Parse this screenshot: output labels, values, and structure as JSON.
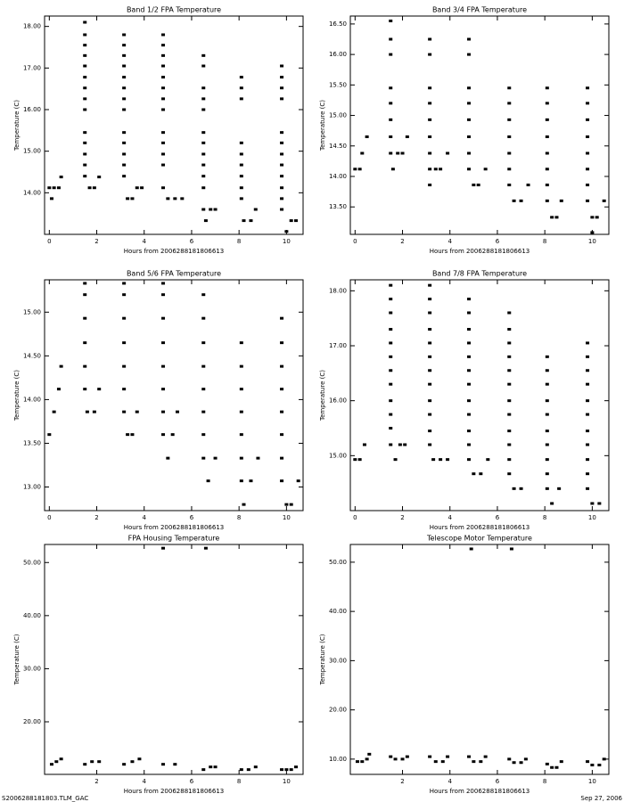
{
  "chart_data": [
    {
      "type": "scatter",
      "title": "Band 1/2 FPA Temperature",
      "x_label": "Hours from 2006288181806613",
      "y_label": "Temperature (C)",
      "color": "#000000",
      "xlim": [
        -0.2,
        10.7
      ],
      "ylim": [
        13.0,
        18.25
      ],
      "xticks": [
        0,
        2,
        4,
        6,
        8,
        10
      ],
      "yticks": [
        {
          "value": 14,
          "label": "14.00"
        },
        {
          "value": 15,
          "label": "15.00"
        },
        {
          "value": 16,
          "label": "16.00"
        },
        {
          "value": 17,
          "label": "17.00"
        },
        {
          "value": 18,
          "label": "18.00"
        }
      ],
      "x": [
        0,
        0.2,
        0.4,
        0.1,
        0.5,
        1.5,
        1.5,
        1.5,
        1.5,
        1.5,
        1.5,
        1.5,
        1.5,
        1.5,
        1.5,
        1.5,
        1.5,
        1.5,
        1.5,
        1.7,
        1.9,
        2.1,
        3.15,
        3.15,
        3.15,
        3.15,
        3.15,
        3.15,
        3.15,
        3.15,
        3.15,
        3.15,
        3.15,
        3.15,
        3.15,
        3.3,
        3.5,
        3.7,
        3.9,
        4.8,
        4.8,
        4.8,
        4.8,
        4.8,
        4.8,
        4.8,
        4.8,
        4.8,
        4.8,
        4.8,
        4.8,
        4.8,
        5.0,
        5.3,
        5.6,
        6.5,
        6.5,
        6.5,
        6.5,
        6.5,
        6.5,
        6.5,
        6.5,
        6.5,
        6.5,
        6.5,
        6.5,
        6.6,
        6.8,
        7.0,
        8.1,
        8.1,
        8.1,
        8.1,
        8.1,
        8.1,
        8.1,
        8.1,
        8.1,
        8.2,
        8.5,
        8.7,
        9.8,
        9.8,
        9.8,
        9.8,
        9.8,
        9.8,
        9.8,
        9.8,
        9.8,
        9.8,
        9.8,
        9.8,
        10.0,
        10.2,
        10.4
      ],
      "y": [
        14.12,
        14.12,
        14.12,
        13.86,
        14.38,
        18.1,
        17.8,
        17.55,
        17.3,
        17.05,
        16.78,
        16.52,
        16.26,
        16.0,
        15.45,
        15.2,
        14.93,
        14.67,
        14.4,
        14.12,
        14.12,
        14.38,
        17.8,
        17.55,
        17.3,
        17.05,
        16.78,
        16.52,
        16.26,
        16.0,
        15.45,
        15.2,
        14.93,
        14.67,
        14.4,
        13.86,
        13.86,
        14.12,
        14.12,
        17.8,
        17.55,
        17.3,
        17.05,
        16.78,
        16.52,
        16.26,
        16.0,
        15.45,
        15.2,
        14.93,
        14.67,
        14.12,
        13.86,
        13.86,
        13.86,
        17.3,
        17.05,
        16.52,
        16.26,
        16.0,
        15.45,
        15.2,
        14.93,
        14.67,
        14.4,
        14.12,
        13.6,
        13.33,
        13.6,
        13.6,
        16.78,
        16.52,
        16.26,
        15.2,
        14.93,
        14.67,
        14.4,
        14.12,
        13.86,
        13.33,
        13.33,
        13.6,
        17.05,
        16.78,
        16.52,
        16.26,
        15.45,
        15.2,
        14.93,
        14.67,
        14.4,
        14.12,
        13.86,
        13.6,
        13.07,
        13.33,
        13.33
      ]
    },
    {
      "type": "scatter",
      "title": "Band 3/4 FPA Temperature",
      "x_label": "Hours from 2006288181806613",
      "y_label": "Temperature (C)",
      "color": "#000000",
      "xlim": [
        -0.2,
        10.7
      ],
      "ylim": [
        13.05,
        16.63
      ],
      "xticks": [
        0,
        2,
        4,
        6,
        8,
        10
      ],
      "yticks": [
        {
          "value": 13.5,
          "label": "13.50"
        },
        {
          "value": 14,
          "label": "14.00"
        },
        {
          "value": 14.5,
          "label": "14.50"
        },
        {
          "value": 15,
          "label": "15.00"
        },
        {
          "value": 15.5,
          "label": "15.50"
        },
        {
          "value": 16,
          "label": "16.00"
        },
        {
          "value": 16.5,
          "label": "16.50"
        }
      ],
      "x": [
        0,
        0.2,
        0.3,
        0.5,
        1.5,
        1.5,
        1.5,
        1.5,
        1.5,
        1.5,
        1.5,
        1.5,
        1.6,
        1.8,
        2.0,
        2.2,
        3.15,
        3.15,
        3.15,
        3.15,
        3.15,
        3.15,
        3.15,
        3.15,
        3.15,
        3.4,
        3.6,
        3.9,
        4.8,
        4.8,
        4.8,
        4.8,
        4.8,
        4.8,
        4.8,
        4.8,
        5.0,
        5.2,
        5.5,
        6.5,
        6.5,
        6.5,
        6.5,
        6.5,
        6.5,
        6.5,
        6.7,
        7.0,
        7.3,
        8.1,
        8.1,
        8.1,
        8.1,
        8.1,
        8.1,
        8.1,
        8.1,
        8.3,
        8.5,
        8.7,
        9.8,
        9.8,
        9.8,
        9.8,
        9.8,
        9.8,
        9.8,
        9.8,
        10.0,
        10.2,
        10.0,
        10.5
      ],
      "y": [
        14.12,
        14.12,
        14.38,
        14.65,
        16.55,
        16.25,
        16.0,
        15.45,
        15.2,
        14.93,
        14.65,
        14.38,
        14.12,
        14.38,
        14.38,
        14.65,
        16.25,
        16.0,
        15.45,
        15.2,
        14.93,
        14.65,
        14.38,
        14.12,
        13.86,
        14.12,
        14.12,
        14.38,
        16.25,
        16.0,
        15.45,
        15.2,
        14.93,
        14.65,
        14.38,
        14.12,
        13.86,
        13.86,
        14.12,
        15.45,
        15.2,
        14.93,
        14.65,
        14.38,
        14.12,
        13.86,
        13.6,
        13.6,
        13.86,
        15.45,
        15.2,
        14.93,
        14.65,
        14.38,
        14.12,
        13.86,
        13.6,
        13.33,
        13.33,
        13.6,
        15.45,
        15.2,
        14.93,
        14.65,
        14.38,
        14.12,
        13.86,
        13.6,
        13.33,
        13.33,
        13.08,
        13.6
      ]
    },
    {
      "type": "scatter",
      "title": "Band 5/6 FPA Temperature",
      "x_label": "Hours from 2006288181806613",
      "y_label": "Temperature (C)",
      "color": "#000000",
      "xlim": [
        -0.2,
        10.7
      ],
      "ylim": [
        12.73,
        15.37
      ],
      "xticks": [
        0,
        2,
        4,
        6,
        8,
        10
      ],
      "yticks": [
        {
          "value": 13,
          "label": "13.00"
        },
        {
          "value": 13.5,
          "label": "13.50"
        },
        {
          "value": 14,
          "label": "14.00"
        },
        {
          "value": 14.5,
          "label": "14.50"
        },
        {
          "value": 15,
          "label": "15.00"
        }
      ],
      "x": [
        0,
        0.2,
        0.4,
        0.5,
        1.5,
        1.5,
        1.5,
        1.5,
        1.5,
        1.5,
        1.6,
        1.9,
        2.1,
        3.15,
        3.15,
        3.15,
        3.15,
        3.15,
        3.15,
        3.15,
        3.3,
        3.5,
        3.7,
        4.8,
        4.8,
        4.8,
        4.8,
        4.8,
        4.8,
        4.8,
        4.8,
        5.0,
        5.2,
        5.4,
        6.5,
        6.5,
        6.5,
        6.5,
        6.5,
        6.5,
        6.5,
        6.5,
        6.7,
        7.0,
        8.1,
        8.1,
        8.1,
        8.1,
        8.1,
        8.1,
        8.1,
        8.2,
        8.5,
        8.8,
        9.8,
        9.8,
        9.8,
        9.8,
        9.8,
        9.8,
        9.8,
        9.8,
        10.0,
        10.2,
        10.5
      ],
      "y": [
        13.6,
        13.86,
        14.12,
        14.38,
        15.33,
        15.2,
        14.93,
        14.65,
        14.38,
        14.12,
        13.86,
        13.86,
        14.12,
        15.33,
        15.2,
        14.93,
        14.65,
        14.38,
        14.12,
        13.86,
        13.6,
        13.6,
        13.86,
        15.33,
        15.2,
        14.93,
        14.65,
        14.38,
        14.12,
        13.86,
        13.6,
        13.33,
        13.6,
        13.86,
        15.2,
        14.93,
        14.65,
        14.38,
        14.12,
        13.86,
        13.6,
        13.33,
        13.07,
        13.33,
        14.65,
        14.38,
        14.12,
        13.86,
        13.6,
        13.33,
        13.07,
        12.8,
        13.07,
        13.33,
        14.93,
        14.65,
        14.38,
        14.12,
        13.86,
        13.6,
        13.33,
        13.07,
        12.8,
        12.8,
        13.07
      ]
    },
    {
      "type": "scatter",
      "title": "Band 7/8 FPA Temperature",
      "x_label": "Hours from 2006288181806613",
      "y_label": "Temperature (C)",
      "color": "#000000",
      "xlim": [
        -0.2,
        10.7
      ],
      "ylim": [
        14.0,
        18.2
      ],
      "xticks": [
        0,
        2,
        4,
        6,
        8,
        10
      ],
      "yticks": [
        {
          "value": 15,
          "label": "15.00"
        },
        {
          "value": 16,
          "label": "16.00"
        },
        {
          "value": 17,
          "label": "17.00"
        },
        {
          "value": 18,
          "label": "18.00"
        }
      ],
      "x": [
        0,
        0.2,
        0.4,
        1.5,
        1.5,
        1.5,
        1.5,
        1.5,
        1.5,
        1.5,
        1.5,
        1.5,
        1.5,
        1.5,
        1.5,
        1.7,
        1.9,
        2.1,
        3.15,
        3.15,
        3.15,
        3.15,
        3.15,
        3.15,
        3.15,
        3.15,
        3.15,
        3.15,
        3.15,
        3.15,
        3.3,
        3.6,
        3.9,
        4.8,
        4.8,
        4.8,
        4.8,
        4.8,
        4.8,
        4.8,
        4.8,
        4.8,
        4.8,
        4.8,
        4.8,
        5.0,
        5.3,
        5.6,
        6.5,
        6.5,
        6.5,
        6.5,
        6.5,
        6.5,
        6.5,
        6.5,
        6.5,
        6.5,
        6.5,
        6.5,
        6.7,
        7.0,
        8.1,
        8.1,
        8.1,
        8.1,
        8.1,
        8.1,
        8.1,
        8.1,
        8.1,
        8.1,
        8.3,
        8.6,
        9.8,
        9.8,
        9.8,
        9.8,
        9.8,
        9.8,
        9.8,
        9.8,
        9.8,
        9.8,
        9.8,
        10.0,
        10.3
      ],
      "y": [
        14.93,
        14.93,
        15.2,
        18.1,
        17.85,
        17.6,
        17.3,
        17.05,
        16.8,
        16.55,
        16.3,
        16.0,
        15.75,
        15.5,
        15.2,
        14.93,
        15.2,
        15.2,
        18.1,
        17.85,
        17.6,
        17.3,
        17.05,
        16.8,
        16.55,
        16.3,
        16.0,
        15.75,
        15.45,
        15.2,
        14.93,
        14.93,
        14.93,
        17.85,
        17.6,
        17.3,
        17.05,
        16.8,
        16.55,
        16.3,
        16.0,
        15.75,
        15.45,
        15.2,
        14.93,
        14.67,
        14.67,
        14.93,
        17.6,
        17.3,
        17.05,
        16.8,
        16.55,
        16.3,
        16.0,
        15.75,
        15.45,
        15.2,
        14.93,
        14.67,
        14.4,
        14.4,
        16.8,
        16.55,
        16.3,
        16.0,
        15.75,
        15.45,
        15.2,
        14.93,
        14.67,
        14.4,
        14.13,
        14.4,
        17.05,
        16.8,
        16.55,
        16.3,
        16.0,
        15.75,
        15.45,
        15.2,
        14.93,
        14.67,
        14.4,
        14.13,
        14.13
      ]
    },
    {
      "type": "scatter",
      "title": "FPA Housing Temperature",
      "x_label": "Hours from 2006288181806613",
      "y_label": "Temperature (C)",
      "color": "#000000",
      "xlim": [
        -0.2,
        10.7
      ],
      "ylim": [
        10.1,
        53.4
      ],
      "xticks": [
        2,
        4,
        6,
        8,
        10
      ],
      "yticks": [
        {
          "value": 20,
          "label": "20.00"
        },
        {
          "value": 30,
          "label": "30.00"
        },
        {
          "value": 40,
          "label": "40.00"
        },
        {
          "value": 50,
          "label": "50.00"
        }
      ],
      "x": [
        0.1,
        0.3,
        0.5,
        1.5,
        1.8,
        2.1,
        3.15,
        3.5,
        3.8,
        4.8,
        4.8,
        5.3,
        6.5,
        6.6,
        6.8,
        7.0,
        8.1,
        8.4,
        8.7,
        9.8,
        10.0,
        10.2,
        10.4
      ],
      "y": [
        12,
        12.5,
        13,
        12,
        12.5,
        12.5,
        12,
        12.5,
        13,
        12,
        52.7,
        12,
        11,
        52.7,
        11.5,
        11.5,
        11,
        11,
        11.5,
        11,
        11,
        11,
        11.5
      ]
    },
    {
      "type": "scatter",
      "title": "Telescope Motor Temperature",
      "x_label": "Hours from 2006288181806613",
      "y_label": "Temperature (C)",
      "color": "#000000",
      "xlim": [
        -0.2,
        10.7
      ],
      "ylim": [
        6.9,
        53.6
      ],
      "xticks": [
        2,
        4,
        6,
        8,
        10
      ],
      "yticks": [
        {
          "value": 10,
          "label": "10.00"
        },
        {
          "value": 20,
          "label": "20.00"
        },
        {
          "value": 30,
          "label": "30.00"
        },
        {
          "value": 40,
          "label": "40.00"
        },
        {
          "value": 50,
          "label": "50.00"
        }
      ],
      "x": [
        0.1,
        0.3,
        0.5,
        0.6,
        1.5,
        1.7,
        2.0,
        2.2,
        3.15,
        3.4,
        3.7,
        3.9,
        4.8,
        4.9,
        5.0,
        5.3,
        5.5,
        6.5,
        6.6,
        6.7,
        7.0,
        7.2,
        8.1,
        8.3,
        8.5,
        8.7,
        9.8,
        10.0,
        10.3,
        10.5
      ],
      "y": [
        9.5,
        9.5,
        10,
        11,
        10.5,
        10,
        10,
        10.5,
        10.5,
        9.5,
        9.5,
        10.5,
        10.5,
        52.7,
        9.5,
        9.5,
        10.5,
        10,
        52.7,
        9.3,
        9.3,
        10,
        9,
        8.3,
        8.3,
        9.5,
        9.5,
        8.8,
        8.8,
        10
      ]
    }
  ],
  "footer": {
    "left": "S2006288181803.TLM_GAC",
    "right": "Sep 27, 2006"
  }
}
